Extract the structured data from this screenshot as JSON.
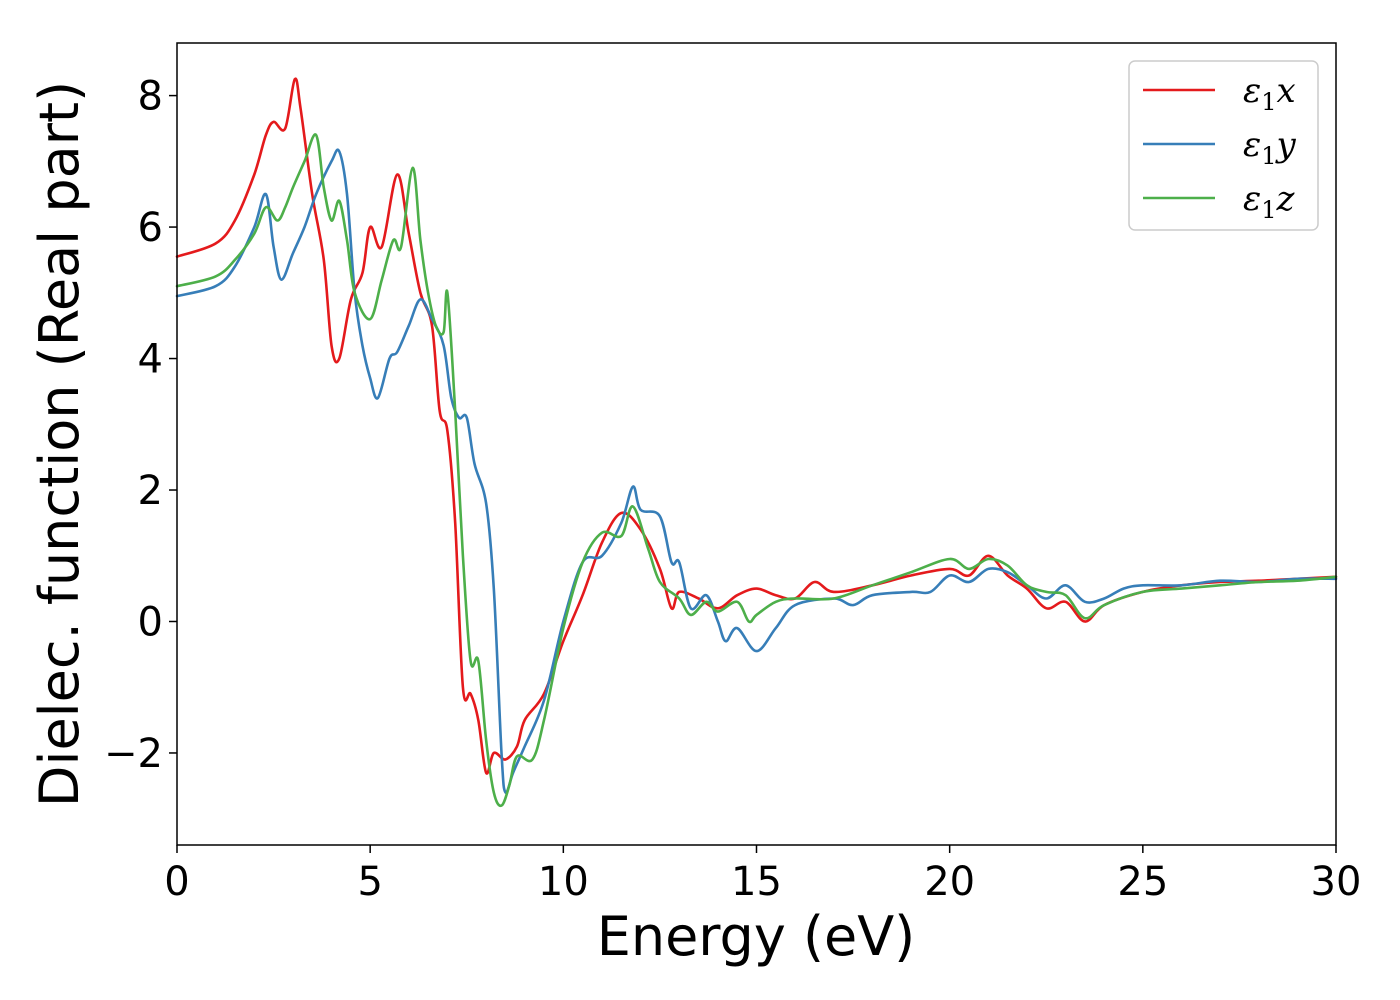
{
  "chart_data": {
    "type": "line",
    "xlabel": "Energy (eV)",
    "ylabel": "Dielec. function (Real part)",
    "xlim": [
      0,
      30
    ],
    "ylim": [
      -3.4,
      8.8
    ],
    "xticks": [
      0,
      5,
      10,
      15,
      20,
      25,
      30
    ],
    "yticks": [
      -2,
      0,
      2,
      4,
      6,
      8
    ],
    "xtick_labels": [
      "0",
      "5",
      "10",
      "15",
      "20",
      "25",
      "30"
    ],
    "ytick_labels": [
      "−2",
      "0",
      "2",
      "4",
      "6",
      "8"
    ],
    "grid": false,
    "legend_position": "top-right",
    "series": [
      {
        "name": "ε1x",
        "legend_symbol": "ε",
        "legend_sub": "1",
        "legend_var": "x",
        "color": "#e41a1c",
        "points": [
          [
            0,
            5.55
          ],
          [
            1.0,
            5.75
          ],
          [
            1.5,
            6.1
          ],
          [
            2.0,
            6.8
          ],
          [
            2.3,
            7.4
          ],
          [
            2.5,
            7.6
          ],
          [
            2.8,
            7.5
          ],
          [
            3.05,
            8.25
          ],
          [
            3.2,
            7.8
          ],
          [
            3.5,
            6.5
          ],
          [
            3.8,
            5.5
          ],
          [
            4.0,
            4.2
          ],
          [
            4.2,
            4.0
          ],
          [
            4.5,
            4.9
          ],
          [
            4.8,
            5.3
          ],
          [
            5.0,
            6.0
          ],
          [
            5.3,
            5.7
          ],
          [
            5.7,
            6.8
          ],
          [
            6.0,
            5.9
          ],
          [
            6.3,
            5.0
          ],
          [
            6.6,
            4.5
          ],
          [
            6.8,
            3.2
          ],
          [
            7.0,
            2.9
          ],
          [
            7.2,
            1.5
          ],
          [
            7.4,
            -1.0
          ],
          [
            7.6,
            -1.1
          ],
          [
            7.8,
            -1.5
          ],
          [
            8.0,
            -2.3
          ],
          [
            8.2,
            -2.0
          ],
          [
            8.5,
            -2.1
          ],
          [
            8.8,
            -1.9
          ],
          [
            9.0,
            -1.5
          ],
          [
            9.5,
            -1.1
          ],
          [
            10.0,
            -0.3
          ],
          [
            10.5,
            0.4
          ],
          [
            11.0,
            1.2
          ],
          [
            11.5,
            1.65
          ],
          [
            12.0,
            1.4
          ],
          [
            12.5,
            0.8
          ],
          [
            12.8,
            0.2
          ],
          [
            13.0,
            0.45
          ],
          [
            13.5,
            0.35
          ],
          [
            14.0,
            0.2
          ],
          [
            14.5,
            0.4
          ],
          [
            15.0,
            0.5
          ],
          [
            15.5,
            0.4
          ],
          [
            16.0,
            0.35
          ],
          [
            16.5,
            0.6
          ],
          [
            17.0,
            0.45
          ],
          [
            18.0,
            0.55
          ],
          [
            19.0,
            0.7
          ],
          [
            20.0,
            0.8
          ],
          [
            20.5,
            0.7
          ],
          [
            21.0,
            1.0
          ],
          [
            21.5,
            0.7
          ],
          [
            22.0,
            0.5
          ],
          [
            22.5,
            0.2
          ],
          [
            23.0,
            0.3
          ],
          [
            23.5,
            0.0
          ],
          [
            24.0,
            0.25
          ],
          [
            25.0,
            0.45
          ],
          [
            26.0,
            0.55
          ],
          [
            27.0,
            0.6
          ],
          [
            28.0,
            0.62
          ],
          [
            29.0,
            0.65
          ],
          [
            30.0,
            0.68
          ]
        ]
      },
      {
        "name": "ε1y",
        "legend_symbol": "ε",
        "legend_sub": "1",
        "legend_var": "y",
        "color": "#377eb8",
        "points": [
          [
            0,
            4.95
          ],
          [
            1.0,
            5.1
          ],
          [
            1.5,
            5.4
          ],
          [
            2.0,
            6.0
          ],
          [
            2.3,
            6.5
          ],
          [
            2.5,
            5.7
          ],
          [
            2.7,
            5.2
          ],
          [
            3.0,
            5.6
          ],
          [
            3.3,
            6.0
          ],
          [
            3.6,
            6.5
          ],
          [
            4.0,
            7.0
          ],
          [
            4.2,
            7.15
          ],
          [
            4.4,
            6.5
          ],
          [
            4.6,
            5.0
          ],
          [
            4.8,
            4.2
          ],
          [
            5.0,
            3.7
          ],
          [
            5.2,
            3.4
          ],
          [
            5.5,
            4.0
          ],
          [
            5.7,
            4.1
          ],
          [
            6.0,
            4.5
          ],
          [
            6.3,
            4.9
          ],
          [
            6.6,
            4.6
          ],
          [
            6.9,
            4.2
          ],
          [
            7.1,
            3.4
          ],
          [
            7.3,
            3.1
          ],
          [
            7.5,
            3.1
          ],
          [
            7.7,
            2.4
          ],
          [
            8.0,
            1.8
          ],
          [
            8.2,
            0.5
          ],
          [
            8.4,
            -2.0
          ],
          [
            8.5,
            -2.6
          ],
          [
            8.7,
            -2.3
          ],
          [
            9.0,
            -1.9
          ],
          [
            9.5,
            -1.2
          ],
          [
            10.0,
            0.0
          ],
          [
            10.5,
            0.9
          ],
          [
            11.0,
            1.0
          ],
          [
            11.5,
            1.5
          ],
          [
            11.8,
            2.05
          ],
          [
            12.0,
            1.7
          ],
          [
            12.5,
            1.6
          ],
          [
            12.8,
            0.9
          ],
          [
            13.0,
            0.9
          ],
          [
            13.3,
            0.2
          ],
          [
            13.7,
            0.4
          ],
          [
            14.0,
            0.0
          ],
          [
            14.2,
            -0.3
          ],
          [
            14.5,
            -0.1
          ],
          [
            15.0,
            -0.45
          ],
          [
            15.5,
            -0.1
          ],
          [
            16.0,
            0.25
          ],
          [
            17.0,
            0.35
          ],
          [
            17.5,
            0.25
          ],
          [
            18.0,
            0.4
          ],
          [
            19.0,
            0.45
          ],
          [
            19.5,
            0.45
          ],
          [
            20.0,
            0.7
          ],
          [
            20.5,
            0.6
          ],
          [
            21.0,
            0.8
          ],
          [
            21.5,
            0.75
          ],
          [
            22.0,
            0.55
          ],
          [
            22.5,
            0.35
          ],
          [
            23.0,
            0.55
          ],
          [
            23.5,
            0.3
          ],
          [
            24.0,
            0.35
          ],
          [
            24.5,
            0.5
          ],
          [
            25.0,
            0.55
          ],
          [
            26.0,
            0.55
          ],
          [
            27.0,
            0.62
          ],
          [
            28.0,
            0.6
          ],
          [
            29.0,
            0.65
          ],
          [
            30.0,
            0.65
          ]
        ]
      },
      {
        "name": "ε1z",
        "legend_symbol": "ε",
        "legend_sub": "1",
        "legend_var": "z",
        "color": "#4daf4a",
        "points": [
          [
            0,
            5.1
          ],
          [
            1.0,
            5.25
          ],
          [
            1.5,
            5.5
          ],
          [
            2.0,
            5.9
          ],
          [
            2.3,
            6.3
          ],
          [
            2.6,
            6.1
          ],
          [
            2.8,
            6.3
          ],
          [
            3.0,
            6.6
          ],
          [
            3.3,
            7.0
          ],
          [
            3.6,
            7.4
          ],
          [
            3.8,
            6.6
          ],
          [
            4.0,
            6.1
          ],
          [
            4.2,
            6.4
          ],
          [
            4.4,
            5.8
          ],
          [
            4.6,
            5.0
          ],
          [
            5.0,
            4.6
          ],
          [
            5.3,
            5.2
          ],
          [
            5.6,
            5.8
          ],
          [
            5.8,
            5.7
          ],
          [
            6.1,
            6.9
          ],
          [
            6.3,
            5.8
          ],
          [
            6.5,
            5.0
          ],
          [
            6.7,
            4.5
          ],
          [
            6.9,
            4.4
          ],
          [
            7.0,
            5.0
          ],
          [
            7.2,
            3.2
          ],
          [
            7.4,
            1.0
          ],
          [
            7.6,
            -0.6
          ],
          [
            7.8,
            -0.6
          ],
          [
            8.0,
            -1.8
          ],
          [
            8.2,
            -2.6
          ],
          [
            8.4,
            -2.8
          ],
          [
            8.6,
            -2.5
          ],
          [
            8.8,
            -2.05
          ],
          [
            9.2,
            -2.1
          ],
          [
            9.5,
            -1.5
          ],
          [
            10.0,
            -0.1
          ],
          [
            10.5,
            0.9
          ],
          [
            11.0,
            1.35
          ],
          [
            11.5,
            1.3
          ],
          [
            11.8,
            1.75
          ],
          [
            12.2,
            1.1
          ],
          [
            12.5,
            0.6
          ],
          [
            13.0,
            0.35
          ],
          [
            13.3,
            0.1
          ],
          [
            13.7,
            0.3
          ],
          [
            14.0,
            0.15
          ],
          [
            14.5,
            0.3
          ],
          [
            14.8,
            0.0
          ],
          [
            15.0,
            0.1
          ],
          [
            15.5,
            0.3
          ],
          [
            16.0,
            0.35
          ],
          [
            17.0,
            0.35
          ],
          [
            18.0,
            0.55
          ],
          [
            19.0,
            0.75
          ],
          [
            20.0,
            0.95
          ],
          [
            20.5,
            0.8
          ],
          [
            21.0,
            0.95
          ],
          [
            21.5,
            0.85
          ],
          [
            22.0,
            0.55
          ],
          [
            22.5,
            0.45
          ],
          [
            23.0,
            0.4
          ],
          [
            23.5,
            0.05
          ],
          [
            24.0,
            0.25
          ],
          [
            25.0,
            0.45
          ],
          [
            26.0,
            0.5
          ],
          [
            27.0,
            0.55
          ],
          [
            28.0,
            0.6
          ],
          [
            29.0,
            0.62
          ],
          [
            30.0,
            0.68
          ]
        ]
      }
    ]
  }
}
